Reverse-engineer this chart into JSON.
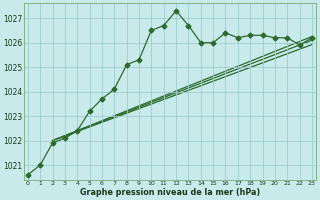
{
  "title": "Graphe pression niveau de la mer (hPa)",
  "background_color": "#c8eaea",
  "grid_color": "#9ecece",
  "line_color": "#2d6a2d",
  "x_values": [
    0,
    1,
    2,
    3,
    4,
    5,
    6,
    7,
    8,
    9,
    10,
    11,
    12,
    13,
    14,
    15,
    16,
    17,
    18,
    19,
    20,
    21,
    22,
    23
  ],
  "line1": [
    1020.6,
    1021.0,
    1021.9,
    1022.1,
    1022.4,
    1023.2,
    1023.7,
    1024.1,
    1025.1,
    1025.3,
    1026.5,
    1026.7,
    1027.3,
    1026.7,
    1026.0,
    1026.0,
    1026.4,
    1026.2,
    1026.3,
    1026.3,
    1026.2,
    1026.2,
    1025.9,
    1026.2
  ],
  "trend_lines": [
    [
      [
        2,
        23
      ],
      [
        1022.0,
        1026.25
      ]
    ],
    [
      [
        2,
        23
      ],
      [
        1022.0,
        1025.92
      ]
    ],
    [
      [
        2,
        23
      ],
      [
        1022.0,
        1026.1
      ]
    ]
  ],
  "ylim": [
    1020.4,
    1027.6
  ],
  "yticks": [
    1021,
    1022,
    1023,
    1024,
    1025,
    1026,
    1027
  ],
  "xticks": [
    0,
    1,
    2,
    3,
    4,
    5,
    6,
    7,
    8,
    9,
    10,
    11,
    12,
    13,
    14,
    15,
    16,
    17,
    18,
    19,
    20,
    21,
    22,
    23
  ],
  "marker": "D",
  "markersize": 2.5,
  "linewidth": 0.9
}
